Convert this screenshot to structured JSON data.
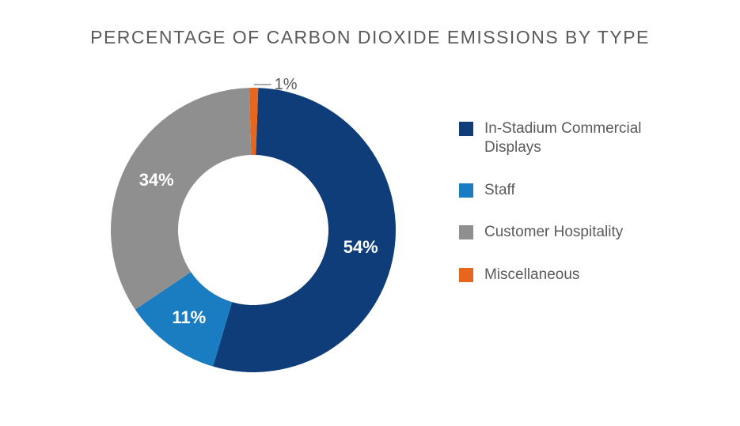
{
  "chart": {
    "type": "donut",
    "title": "PERCENTAGE OF CARBON DIOXIDE EMISSIONS BY TYPE",
    "title_fontsize": 23,
    "title_color": "#5a5a5a",
    "background_color": "#ffffff",
    "outer_radius": 180,
    "inner_radius": 95,
    "start_angle_deg": 2,
    "label_fontsize": 22,
    "label_color_on_slice": "#ffffff",
    "callout_fontsize": 20,
    "callout_color": "#5a5a5a",
    "slices": [
      {
        "name": "In-Stadium Commercial Displays",
        "value": 54,
        "label": "54%",
        "color": "#0f3d79"
      },
      {
        "name": "Staff",
        "value": 11,
        "label": "11%",
        "color": "#1a7cc1"
      },
      {
        "name": "Customer Hospitality",
        "value": 34,
        "label": "34%",
        "color": "#8f8f8f"
      },
      {
        "name": "Miscellaneous",
        "value": 1,
        "label": "1%",
        "color": "#e8651d"
      }
    ],
    "legend": {
      "fontsize": 19,
      "color": "#5a5a5a",
      "swatch_size": 18
    }
  }
}
